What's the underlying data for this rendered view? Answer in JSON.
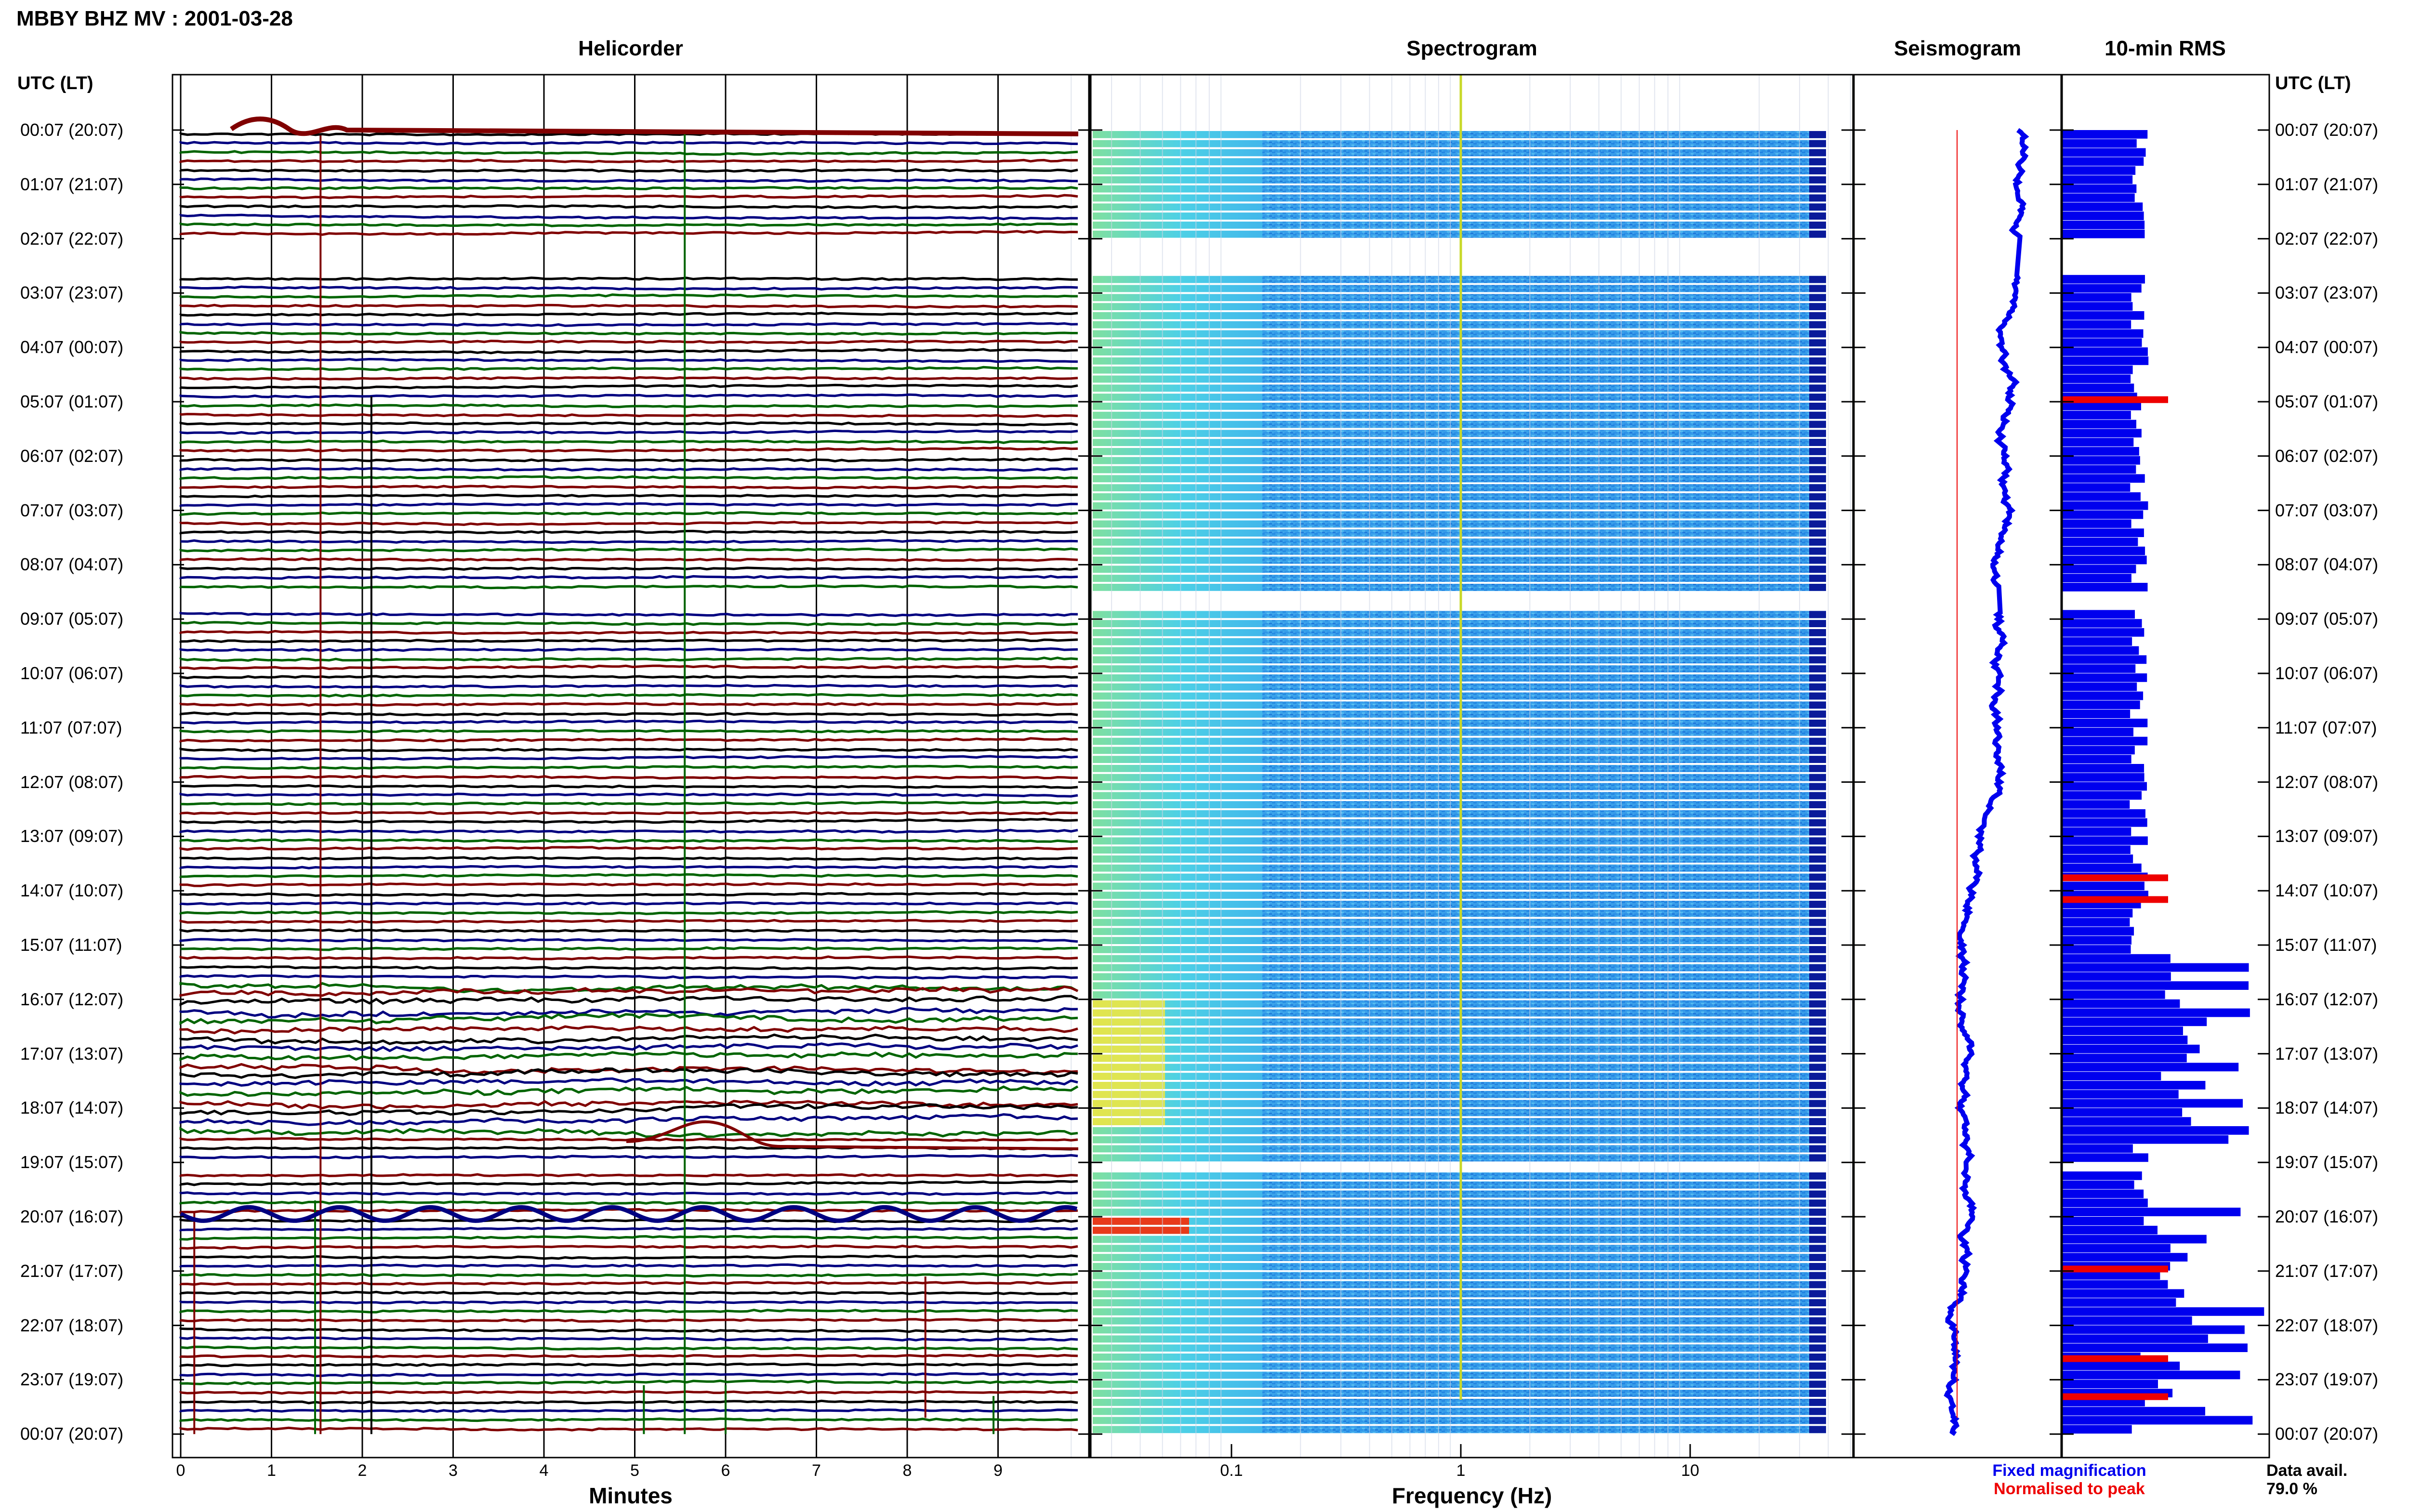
{
  "title": "MBBY BHZ MV : 2001-03-28",
  "panels": {
    "helicorder": "Helicorder",
    "spectrogram": "Spectrogram",
    "seismogram": "Seismogram",
    "rms": "10-min RMS"
  },
  "y_header_left": "UTC (LT)",
  "y_header_right": "UTC (LT)",
  "hour_labels": [
    "00:07 (20:07)",
    "01:07 (21:07)",
    "02:07 (22:07)",
    "03:07 (23:07)",
    "04:07 (00:07)",
    "05:07 (01:07)",
    "06:07 (02:07)",
    "07:07 (03:07)",
    "08:07 (04:07)",
    "09:07 (05:07)",
    "10:07 (06:07)",
    "11:07 (07:07)",
    "12:07 (08:07)",
    "13:07 (09:07)",
    "14:07 (10:07)",
    "15:07 (11:07)",
    "16:07 (12:07)",
    "17:07 (13:07)",
    "18:07 (14:07)",
    "19:07 (15:07)",
    "20:07 (16:07)",
    "21:07 (17:07)",
    "22:07 (18:07)",
    "23:07 (19:07)",
    "00:07 (20:07)"
  ],
  "legend": {
    "fixed": "Fixed magnification",
    "normalised": "Normalised to peak",
    "data_avail_label": "Data avail.",
    "data_avail_value": "79.0 %"
  },
  "colors": {
    "blue": "#0000ee",
    "red": "#ee0000",
    "trace_black": "#000000",
    "trace_blue": "#000080",
    "trace_green": "#006400",
    "trace_red": "#800000"
  },
  "chart_data": [
    {
      "type": "line",
      "title": "Helicorder",
      "xlabel": "Minutes",
      "x_ticks": [
        "0",
        "1",
        "2",
        "3",
        "4",
        "5",
        "6",
        "7",
        "8",
        "9"
      ],
      "xlim": [
        0,
        10
      ],
      "ylim_hours": [
        0,
        24
      ],
      "trace_colors_cycle": [
        "black",
        "blue",
        "green",
        "red"
      ],
      "traces_per_hour": 6,
      "data_gaps_hours": [
        [
          2.0,
          2.65
        ],
        [
          8.4,
          8.85
        ],
        [
          19.0,
          19.1
        ]
      ]
    },
    {
      "type": "heatmap",
      "title": "Spectrogram",
      "xlabel": "Frequency (Hz)",
      "x_scale": "log",
      "x_ticks": [
        "0.1",
        "1",
        "10"
      ],
      "xlim": [
        0.02,
        50
      ]
    },
    {
      "type": "line",
      "title": "Seismogram",
      "series": [
        {
          "name": "Fixed magnification",
          "color": "blue"
        },
        {
          "name": "Normalised to peak",
          "color": "red"
        }
      ]
    },
    {
      "type": "bar",
      "title": "10-min RMS",
      "series": [
        {
          "name": "Fixed magnification",
          "color": "blue"
        },
        {
          "name": "Normalised to peak",
          "color": "red"
        }
      ],
      "red_bar_hours": [
        4.9,
        13.7,
        14.1,
        20.9,
        22.55,
        23.25
      ]
    }
  ]
}
